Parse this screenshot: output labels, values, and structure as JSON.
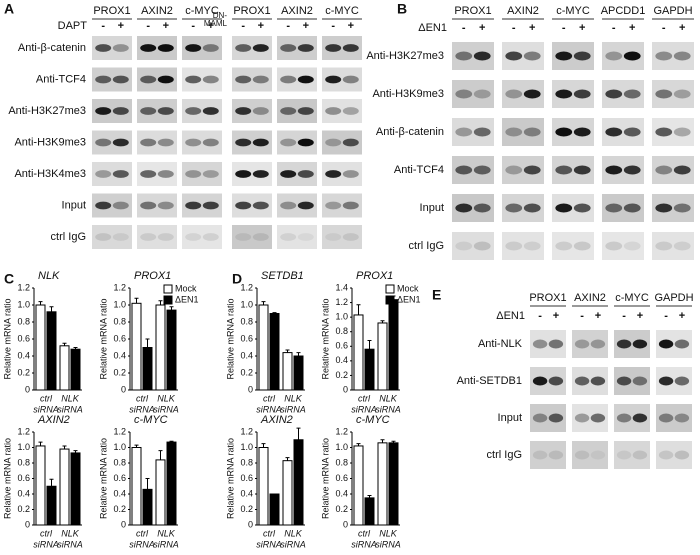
{
  "gel_panels": [
    {
      "label": "A",
      "groups": [
        {
          "treatment": [
            "DAPT"
          ],
          "genes": [
            "PROX1",
            "AXIN2",
            "c-MYC"
          ]
        },
        {
          "treatment": [
            "DN-",
            "MAML"
          ],
          "genes": [
            "PROX1",
            "AXIN2",
            "c-MYC"
          ]
        }
      ],
      "lanes": [
        "-",
        "+"
      ],
      "rows": [
        "Anti-β-catenin",
        "Anti-TCF4",
        "Anti-H3K27me3",
        "Anti-H3K9me3",
        "Anti-H3K4me3",
        "Input",
        "ctrl IgG"
      ]
    },
    {
      "label": "B",
      "groups": [
        {
          "treatment": [
            "ΔEN1"
          ],
          "genes": [
            "PROX1",
            "AXIN2",
            "c-MYC",
            "APCDD1",
            "GAPDH"
          ]
        }
      ],
      "lanes": [
        "-",
        "+"
      ],
      "rows": [
        "Anti-H3K27me3",
        "Anti-H3K9me3",
        "Anti-β-catenin",
        "Anti-TCF4",
        "Input",
        "ctrl IgG"
      ]
    },
    {
      "label": "E",
      "groups": [
        {
          "treatment": [
            "ΔEN1"
          ],
          "genes": [
            "PROX1",
            "AXIN2",
            "c-MYC",
            "GAPDH"
          ]
        }
      ],
      "lanes": [
        "-",
        "+"
      ],
      "rows": [
        "Anti-NLK",
        "Anti-SETDB1",
        "Input",
        "ctrl IgG"
      ]
    }
  ],
  "chart_panel_labels": [
    "C",
    "D"
  ],
  "chart_data": [
    {
      "type": "bar",
      "title": "NLK",
      "ylabel": "Relative mRNA ratio",
      "categories": [
        [
          "ctrl",
          "siRNA"
        ],
        [
          "NLK",
          "siRNA"
        ]
      ],
      "series": [
        {
          "color": "#ffffff",
          "values": [
            1.0,
            0.52
          ],
          "errors": [
            0.04,
            0.03
          ]
        },
        {
          "color": "#000000",
          "values": [
            0.92,
            0.48
          ],
          "errors": [
            0.06,
            0.02
          ]
        }
      ],
      "ylim": [
        0,
        1.2
      ],
      "yticks": [
        0,
        0.2,
        0.4,
        0.6,
        0.8,
        {
          "value": 1,
          "label": "1.0"
        },
        1.2
      ]
    },
    {
      "type": "bar",
      "title": "PROX1",
      "ylabel": "Relative mRNA ratio",
      "categories": [
        [
          "ctrl",
          "siRNA"
        ],
        [
          "NLK",
          "siRNA"
        ]
      ],
      "series": [
        {
          "name": "Mock",
          "color": "#ffffff",
          "values": [
            1.02,
            1.0
          ],
          "errors": [
            0.06,
            0.05
          ]
        },
        {
          "name": "ΔEN1",
          "color": "#000000",
          "values": [
            0.5,
            0.94
          ],
          "errors": [
            0.1,
            0.04
          ]
        }
      ],
      "ylim": [
        0,
        1.2
      ],
      "yticks": [
        0,
        0.2,
        0.4,
        0.6,
        0.8,
        {
          "value": 1,
          "label": "1.0"
        },
        1.2
      ],
      "legend": "upper right"
    },
    {
      "type": "bar",
      "title": "AXIN2",
      "ylabel": "Relative mRNA ratio",
      "categories": [
        [
          "ctrl",
          "siRNA"
        ],
        [
          "NLK",
          "siRNA"
        ]
      ],
      "series": [
        {
          "color": "#ffffff",
          "values": [
            1.02,
            0.98
          ],
          "errors": [
            0.05,
            0.04
          ]
        },
        {
          "color": "#000000",
          "values": [
            0.5,
            0.93
          ],
          "errors": [
            0.09,
            0.03
          ]
        }
      ],
      "ylim": [
        0,
        1.2
      ],
      "yticks": [
        0,
        0.2,
        0.4,
        0.6,
        0.8,
        {
          "value": 1,
          "label": "1.0"
        },
        1.2
      ]
    },
    {
      "type": "bar",
      "title": "c-MYC",
      "ylabel": "Relative mRNA ratio",
      "categories": [
        [
          "ctrl",
          "siRNA"
        ],
        [
          "NLK",
          "siRNA"
        ]
      ],
      "series": [
        {
          "color": "#ffffff",
          "values": [
            1.0,
            0.84
          ],
          "errors": [
            0.03,
            0.12
          ]
        },
        {
          "color": "#000000",
          "values": [
            0.46,
            1.07
          ],
          "errors": [
            0.14,
            0.01
          ]
        }
      ],
      "ylim": [
        0,
        1.2
      ],
      "yticks": [
        0,
        0.2,
        0.4,
        0.6,
        0.8,
        {
          "value": 1,
          "label": "1.0"
        },
        1.2
      ]
    },
    {
      "type": "bar",
      "title": "SETDB1",
      "ylabel": "Relative mRNA ratio",
      "categories": [
        [
          "ctrl",
          "siRNA"
        ],
        [
          "NLK",
          "siRNA"
        ]
      ],
      "series": [
        {
          "color": "#ffffff",
          "values": [
            1.0,
            0.44
          ],
          "errors": [
            0.04,
            0.03
          ]
        },
        {
          "color": "#000000",
          "values": [
            0.9,
            0.4
          ],
          "errors": [
            0.01,
            0.04
          ]
        }
      ],
      "ylim": [
        0,
        1.2
      ],
      "yticks": [
        0,
        0.2,
        0.4,
        0.6,
        0.8,
        {
          "value": 1,
          "label": "1.0"
        },
        1.2
      ]
    },
    {
      "type": "bar",
      "title": "PROX1",
      "ylabel": "Relative mRNA ratio",
      "categories": [
        [
          "ctrl",
          "siRNA"
        ],
        [
          "NLK",
          "siRNA"
        ]
      ],
      "series": [
        {
          "name": "Mock",
          "color": "#ffffff",
          "values": [
            1.03,
            0.92
          ],
          "errors": [
            0.14,
            0.03
          ]
        },
        {
          "name": "ΔEN1",
          "color": "#000000",
          "values": [
            0.56,
            1.24
          ],
          "errors": [
            0.12,
            0.05
          ]
        }
      ],
      "ylim": [
        0,
        1.4
      ],
      "yticks": [
        0,
        0.2,
        0.4,
        0.6,
        0.8,
        {
          "value": 1,
          "label": "1.0"
        },
        1.2,
        1.4
      ],
      "legend": "upper right"
    },
    {
      "type": "bar",
      "title": "AXIN2",
      "ylabel": "Relative mRNA ratio",
      "categories": [
        [
          "ctrl",
          "siRNA"
        ],
        [
          "NLK",
          "siRNA"
        ]
      ],
      "series": [
        {
          "color": "#ffffff",
          "values": [
            1.0,
            0.83
          ],
          "errors": [
            0.05,
            0.04
          ]
        },
        {
          "color": "#000000",
          "values": [
            0.4,
            1.1
          ],
          "errors": [
            0.0,
            0.15
          ]
        }
      ],
      "ylim": [
        0,
        1.2
      ],
      "yticks": [
        0,
        0.2,
        0.4,
        0.6,
        0.8,
        {
          "value": 1,
          "label": "1.0"
        },
        1.2
      ]
    },
    {
      "type": "bar",
      "title": "c-MYC",
      "ylabel": "Relative mRNA ratio",
      "categories": [
        [
          "ctrl",
          "siRNA"
        ],
        [
          "NLK",
          "siRNA"
        ]
      ],
      "series": [
        {
          "color": "#ffffff",
          "values": [
            1.02,
            1.06
          ],
          "errors": [
            0.03,
            0.04
          ]
        },
        {
          "color": "#000000",
          "values": [
            0.35,
            1.06
          ],
          "errors": [
            0.03,
            0.02
          ]
        }
      ],
      "ylim": [
        0,
        1.2
      ],
      "yticks": [
        0,
        0.2,
        0.4,
        0.6,
        0.8,
        {
          "value": 1,
          "label": "1.0"
        },
        1.2
      ]
    }
  ]
}
